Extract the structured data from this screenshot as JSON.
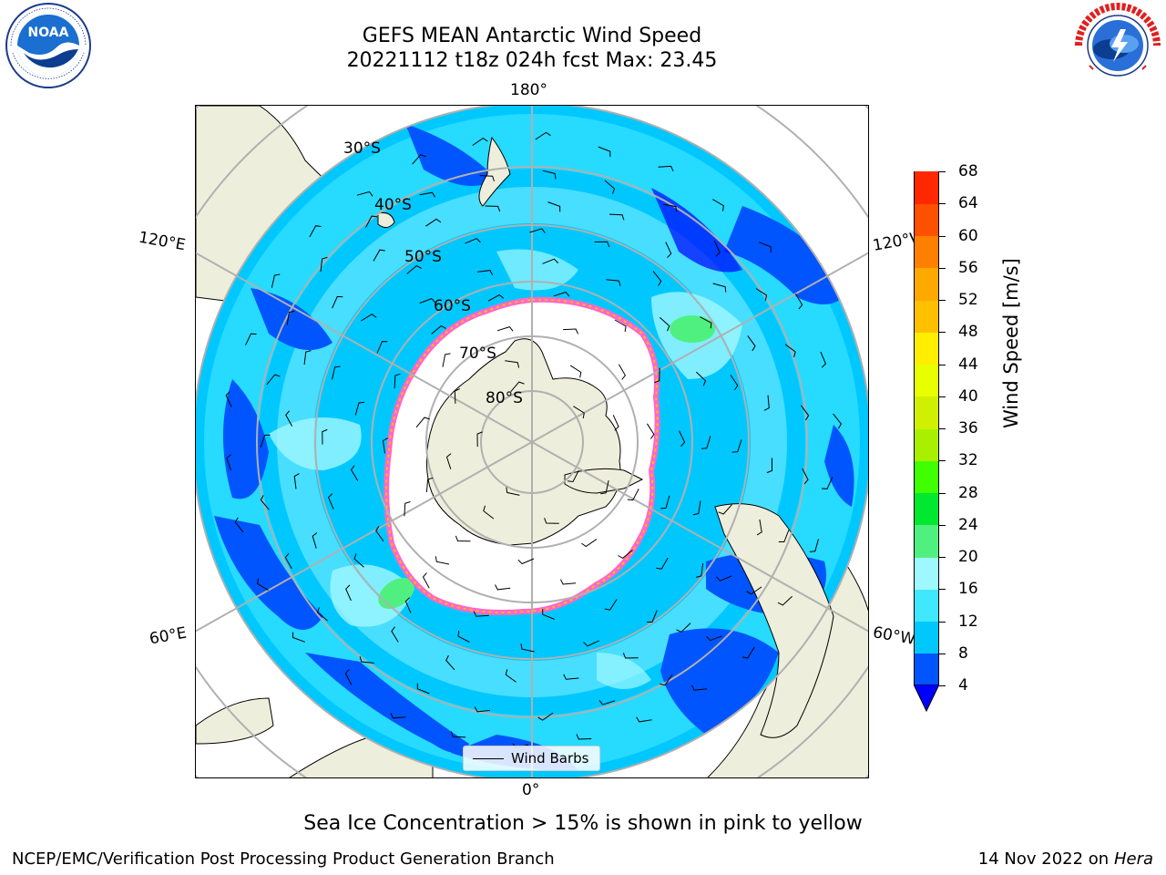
{
  "title": {
    "line1": "GEFS MEAN Antarctic Wind Speed",
    "line2": "20221112 t18z 024h fcst   Max: 23.45"
  },
  "map": {
    "projection": "south-polar-stereographic",
    "center": "South Pole",
    "longitude_labels": {
      "top": "180°",
      "left_upper": "120°E",
      "right_upper": "120°W",
      "left_lower": "60°E",
      "right_lower": "60°W",
      "bottom": "0°"
    },
    "latitude_labels": [
      "30°S",
      "40°S",
      "50°S",
      "60°S",
      "70°S",
      "80°S"
    ],
    "legend": {
      "label": "Wind Barbs"
    },
    "colors": {
      "land": "#eeeedc",
      "sea_ice": "#ffffff",
      "sea_ice_edge": "#ff66cc",
      "grid": "#b0b0b0"
    }
  },
  "colorbar": {
    "title": "Wind Speed [m/s]",
    "ticks": [
      "4",
      "8",
      "12",
      "16",
      "20",
      "24",
      "28",
      "32",
      "36",
      "40",
      "44",
      "48",
      "52",
      "56",
      "60",
      "64",
      "68"
    ],
    "colors": [
      "#0055ff",
      "#00c8ff",
      "#40e8ff",
      "#a0f8ff",
      "#50f080",
      "#00e830",
      "#40ff00",
      "#a8f000",
      "#d0f000",
      "#e8ff00",
      "#ffee00",
      "#ffc000",
      "#ffa800",
      "#ff8000",
      "#ff5000",
      "#ff2800",
      "#ff0000"
    ],
    "under_color": "#0000ff"
  },
  "footnote": "Sea Ice Concentration > 15% is shown in pink to yellow",
  "credit": "NCEP/EMC/Verification Post Processing Product Generation Branch",
  "date": {
    "text": "14 Nov 2022 on",
    "host": "Hera"
  },
  "logos": {
    "left": "noaa-logo",
    "right": "national-weather-service-logo"
  }
}
